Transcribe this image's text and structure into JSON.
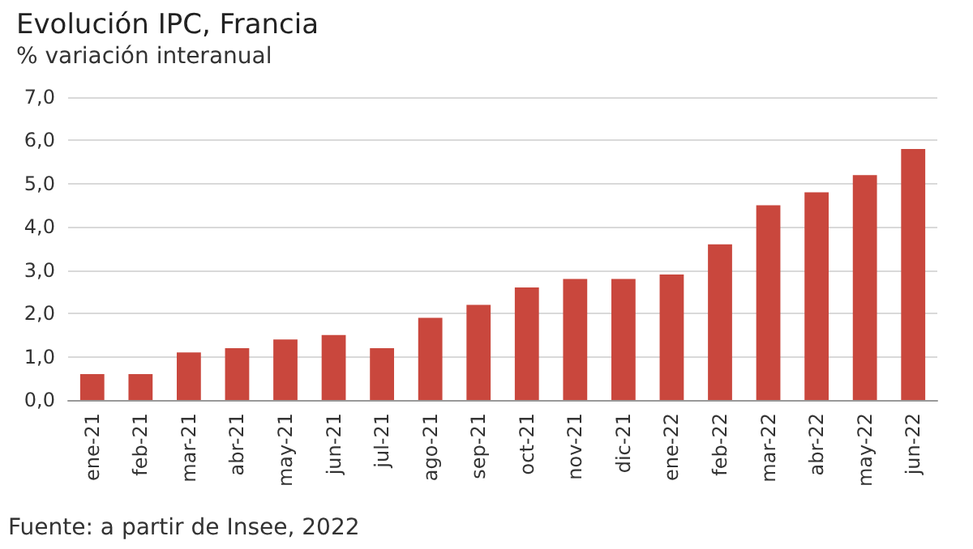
{
  "chart_data": {
    "type": "bar",
    "title": "Evolución IPC, Francia",
    "subtitle": "% variación interanual",
    "categories": [
      "ene-21",
      "feb-21",
      "mar-21",
      "abr-21",
      "may-21",
      "jun-21",
      "jul-21",
      "ago-21",
      "sep-21",
      "oct-21",
      "nov-21",
      "dic-21",
      "ene-22",
      "feb-22",
      "mar-22",
      "abr-22",
      "may-22",
      "jun-22"
    ],
    "values": [
      0.6,
      0.6,
      1.1,
      1.2,
      1.4,
      1.5,
      1.2,
      1.9,
      2.2,
      2.6,
      2.8,
      2.8,
      2.9,
      3.6,
      4.5,
      4.8,
      5.2,
      5.8
    ],
    "color": "#c9473d",
    "ylim": [
      0,
      7
    ],
    "yticks": [
      {
        "value": 0,
        "label": "0,0"
      },
      {
        "value": 1,
        "label": "1,0"
      },
      {
        "value": 2,
        "label": "2,0"
      },
      {
        "value": 3,
        "label": "3,0"
      },
      {
        "value": 4,
        "label": "4,0"
      },
      {
        "value": 5,
        "label": "5,0"
      },
      {
        "value": 6,
        "label": "6,0"
      },
      {
        "value": 7,
        "label": "7,0"
      }
    ],
    "grid": "y",
    "annotations": [
      "Fuente: a partir de Insee, 2022"
    ]
  }
}
